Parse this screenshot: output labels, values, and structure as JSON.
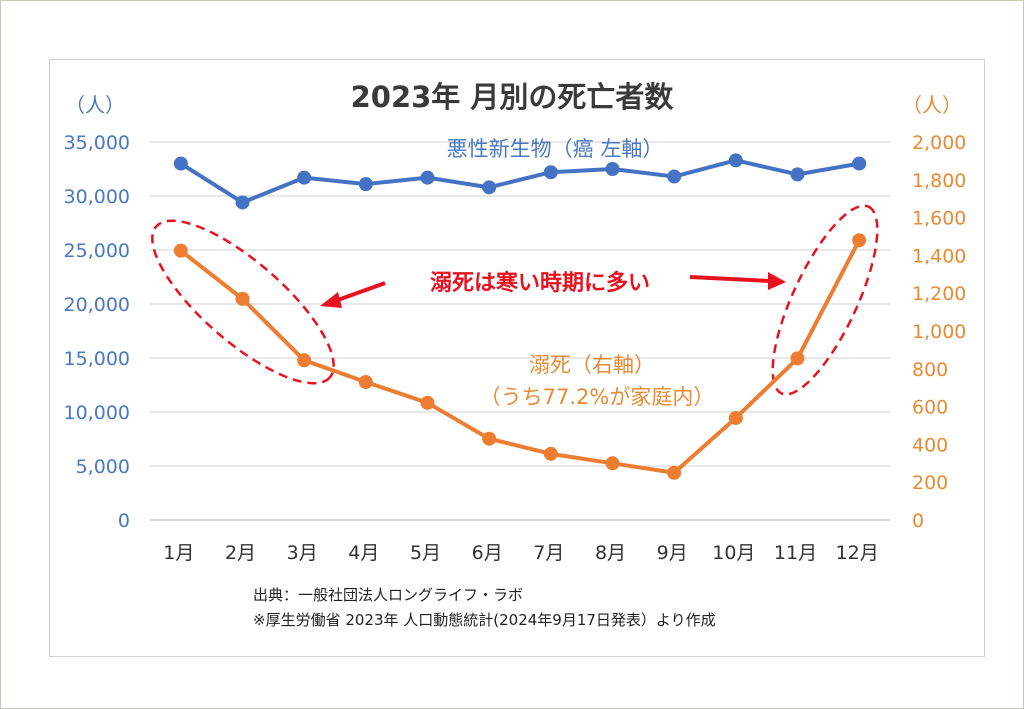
{
  "chart_data": {
    "type": "line",
    "title": "2023年 月別の死亡者数",
    "categories": [
      "1月",
      "2月",
      "3月",
      "4月",
      "5月",
      "6月",
      "7月",
      "8月",
      "9月",
      "10月",
      "11月",
      "12月"
    ],
    "series": [
      {
        "name": "悪性新生物（癌 左軸）",
        "axis": "left",
        "color": "#4472c4",
        "values": [
          33000,
          29400,
          31700,
          31100,
          31700,
          30800,
          32200,
          32500,
          31800,
          33300,
          32000,
          33000
        ]
      },
      {
        "name": "溺死（右軸）",
        "axis": "right",
        "color": "#ed7d31",
        "values": [
          1425,
          1170,
          845,
          730,
          620,
          430,
          350,
          300,
          250,
          540,
          855,
          1480
        ]
      }
    ],
    "left_axis": {
      "unit": "（人）",
      "ylim": [
        0,
        35000
      ],
      "ticks": [
        "0",
        "5,000",
        "10,000",
        "15,000",
        "20,000",
        "25,000",
        "30,000",
        "35,000"
      ]
    },
    "right_axis": {
      "unit": "（人）",
      "ylim": [
        0,
        2000
      ],
      "ticks": [
        "0",
        "200",
        "400",
        "600",
        "800",
        "1,000",
        "1,200",
        "1,400",
        "1,600",
        "1,800",
        "2,000"
      ]
    },
    "annotations": {
      "cancer_label": "悪性新生物（癌 左軸）",
      "drowning_label": "溺死（右軸）",
      "drowning_sub": "（うち77.2%が家庭内）",
      "callout": "溺死は寒い時期に多い"
    },
    "source_line1": "出典：一般社団法人ロングライフ・ラボ",
    "source_line2": "※厚生労働省 2023年 人口動態統計(2024年9月17日発表）より作成"
  }
}
